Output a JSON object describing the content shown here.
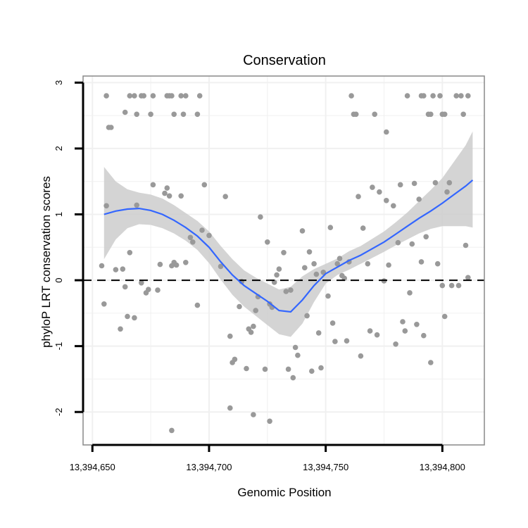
{
  "chart_data": {
    "type": "scatter",
    "title": "Conservation",
    "xlabel": "Genomic Position",
    "ylabel": "phyloP LRT conservation scores",
    "xlim": [
      13394646,
      13394818
    ],
    "ylim": [
      -2.5,
      3.1
    ],
    "x_ticks": [
      13394650,
      13394700,
      13394750,
      13394800
    ],
    "x_tick_labels": [
      "13,394,650",
      "13,394,700",
      "13,394,750",
      "13,394,800"
    ],
    "y_ticks": [
      -2,
      -1,
      0,
      1,
      2,
      3
    ],
    "y_tick_labels": [
      "-2",
      "-1",
      "0",
      "1",
      "2",
      "3"
    ],
    "reference_line": {
      "y": 0,
      "style": "dashed"
    },
    "grid": true,
    "colors": {
      "points": "#999999",
      "smooth_line": "#3366ff",
      "confidence_band": "#cccccc",
      "panel_background": "#ffffff",
      "grid": "#f0f0f0",
      "panel_border": "#888888"
    },
    "points": [
      [
        13394656,
        2.8
      ],
      [
        13394657,
        2.32
      ],
      [
        13394658,
        2.32
      ],
      [
        13394664,
        2.55
      ],
      [
        13394666,
        2.8
      ],
      [
        13394668,
        2.8
      ],
      [
        13394669,
        2.52
      ],
      [
        13394671,
        2.8
      ],
      [
        13394672,
        2.8
      ],
      [
        13394675,
        2.52
      ],
      [
        13394676,
        2.8
      ],
      [
        13394682,
        2.8
      ],
      [
        13394683,
        2.8
      ],
      [
        13394684,
        2.8
      ],
      [
        13394685,
        2.52
      ],
      [
        13394688,
        2.8
      ],
      [
        13394689,
        2.52
      ],
      [
        13394690,
        2.8
      ],
      [
        13394695,
        2.52
      ],
      [
        13394696,
        2.8
      ],
      [
        13394761,
        2.8
      ],
      [
        13394762,
        2.52
      ],
      [
        13394763,
        2.52
      ],
      [
        13394771,
        2.52
      ],
      [
        13394776,
        2.25
      ],
      [
        13394785,
        2.8
      ],
      [
        13394791,
        2.8
      ],
      [
        13394792,
        2.8
      ],
      [
        13394794,
        2.52
      ],
      [
        13394795,
        2.52
      ],
      [
        13394796,
        2.8
      ],
      [
        13394799,
        2.8
      ],
      [
        13394800,
        2.52
      ],
      [
        13394801,
        2.52
      ],
      [
        13394806,
        2.8
      ],
      [
        13394808,
        2.8
      ],
      [
        13394809,
        2.52
      ],
      [
        13394811,
        2.8
      ],
      [
        13394654,
        0.22
      ],
      [
        13394655,
        -0.36
      ],
      [
        13394656,
        1.13
      ],
      [
        13394660,
        0.16
      ],
      [
        13394662,
        -0.74
      ],
      [
        13394663,
        0.17
      ],
      [
        13394664,
        -0.1
      ],
      [
        13394665,
        -0.55
      ],
      [
        13394666,
        0.42
      ],
      [
        13394668,
        -0.57
      ],
      [
        13394669,
        1.14
      ],
      [
        13394671,
        -0.04
      ],
      [
        13394673,
        -0.19
      ],
      [
        13394674,
        -0.14
      ],
      [
        13394676,
        1.45
      ],
      [
        13394678,
        -0.15
      ],
      [
        13394679,
        0.24
      ],
      [
        13394681,
        1.32
      ],
      [
        13394682,
        1.4
      ],
      [
        13394683,
        1.28
      ],
      [
        13394684,
        0.22
      ],
      [
        13394685,
        0.27
      ],
      [
        13394686,
        0.23
      ],
      [
        13394688,
        1.28
      ],
      [
        13394690,
        0.27
      ],
      [
        13394692,
        0.65
      ],
      [
        13394693,
        0.58
      ],
      [
        13394695,
        -0.38
      ],
      [
        13394697,
        0.76
      ],
      [
        13394698,
        1.45
      ],
      [
        13394700,
        0.68
      ],
      [
        13394705,
        0.21
      ],
      [
        13394707,
        1.27
      ],
      [
        13394709,
        -0.85
      ],
      [
        13394710,
        -1.25
      ],
      [
        13394711,
        -1.2
      ],
      [
        13394713,
        -0.4
      ],
      [
        13394714,
        -0.02
      ],
      [
        13394716,
        -1.34
      ],
      [
        13394717,
        -0.74
      ],
      [
        13394718,
        -0.79
      ],
      [
        13394719,
        -0.7
      ],
      [
        13394720,
        -0.46
      ],
      [
        13394721,
        -0.25
      ],
      [
        13394722,
        0.96
      ],
      [
        13394724,
        -1.35
      ],
      [
        13394725,
        0.58
      ],
      [
        13394726,
        -0.36
      ],
      [
        13394727,
        -0.41
      ],
      [
        13394728,
        -0.03
      ],
      [
        13394729,
        0.08
      ],
      [
        13394730,
        0.17
      ],
      [
        13394732,
        0.42
      ],
      [
        13394733,
        -0.17
      ],
      [
        13394734,
        -1.35
      ],
      [
        13394735,
        -0.15
      ],
      [
        13394736,
        -1.48
      ],
      [
        13394737,
        -1.02
      ],
      [
        13394738,
        -1.14
      ],
      [
        13394740,
        0.75
      ],
      [
        13394741,
        0.19
      ],
      [
        13394742,
        -0.54
      ],
      [
        13394743,
        0.43
      ],
      [
        13394744,
        -1.38
      ],
      [
        13394745,
        0.25
      ],
      [
        13394746,
        0.09
      ],
      [
        13394747,
        -0.8
      ],
      [
        13394748,
        -1.33
      ],
      [
        13394749,
        0.12
      ],
      [
        13394751,
        -0.24
      ],
      [
        13394752,
        0.8
      ],
      [
        13394753,
        -0.65
      ],
      [
        13394754,
        -0.93
      ],
      [
        13394755,
        0.25
      ],
      [
        13394756,
        0.33
      ],
      [
        13394757,
        0.07
      ],
      [
        13394758,
        0.03
      ],
      [
        13394759,
        -0.92
      ],
      [
        13394760,
        0.28
      ],
      [
        13394764,
        1.27
      ],
      [
        13394765,
        -1.15
      ],
      [
        13394766,
        0.79
      ],
      [
        13394768,
        0.25
      ],
      [
        13394769,
        -0.77
      ],
      [
        13394770,
        1.41
      ],
      [
        13394772,
        -0.83
      ],
      [
        13394773,
        1.34
      ],
      [
        13394775,
        -0.01
      ],
      [
        13394776,
        1.21
      ],
      [
        13394777,
        0.23
      ],
      [
        13394779,
        1.13
      ],
      [
        13394780,
        -0.97
      ],
      [
        13394781,
        0.57
      ],
      [
        13394782,
        1.45
      ],
      [
        13394783,
        -0.63
      ],
      [
        13394784,
        -0.77
      ],
      [
        13394786,
        -0.19
      ],
      [
        13394787,
        0.55
      ],
      [
        13394788,
        1.47
      ],
      [
        13394789,
        -0.67
      ],
      [
        13394790,
        1.23
      ],
      [
        13394791,
        0.28
      ],
      [
        13394792,
        -0.84
      ],
      [
        13394793,
        0.66
      ],
      [
        13394795,
        -1.25
      ],
      [
        13394797,
        1.48
      ],
      [
        13394798,
        0.25
      ],
      [
        13394800,
        -0.08
      ],
      [
        13394801,
        -0.55
      ],
      [
        13394802,
        1.34
      ],
      [
        13394803,
        1.48
      ],
      [
        13394804,
        -0.08
      ],
      [
        13394807,
        -0.08
      ],
      [
        13394810,
        0.53
      ],
      [
        13394811,
        0.04
      ],
      [
        13394684,
        -2.28
      ],
      [
        13394709,
        -1.94
      ],
      [
        13394719,
        -2.04
      ],
      [
        13394726,
        -2.14
      ]
    ],
    "smooth": {
      "x": [
        13394655,
        13394660,
        13394665,
        13394670,
        13394675,
        13394680,
        13394685,
        13394690,
        13394695,
        13394700,
        13394705,
        13394710,
        13394715,
        13394720,
        13394725,
        13394730,
        13394735,
        13394740,
        13394745,
        13394750,
        13394755,
        13394760,
        13394765,
        13394770,
        13394775,
        13394780,
        13394785,
        13394790,
        13394795,
        13394800,
        13394805,
        13394810,
        13394813
      ],
      "y": [
        1.0,
        1.05,
        1.08,
        1.09,
        1.06,
        1.0,
        0.91,
        0.8,
        0.67,
        0.5,
        0.28,
        0.08,
        -0.08,
        -0.2,
        -0.32,
        -0.46,
        -0.48,
        -0.3,
        -0.08,
        0.1,
        0.2,
        0.3,
        0.38,
        0.48,
        0.58,
        0.7,
        0.82,
        0.94,
        1.05,
        1.17,
        1.3,
        1.43,
        1.52
      ],
      "lower": [
        0.32,
        0.62,
        0.79,
        0.85,
        0.84,
        0.79,
        0.71,
        0.6,
        0.46,
        0.26,
        0.01,
        -0.22,
        -0.4,
        -0.54,
        -0.68,
        -0.82,
        -0.86,
        -0.66,
        -0.33,
        -0.05,
        0.08,
        0.16,
        0.25,
        0.34,
        0.43,
        0.53,
        0.62,
        0.71,
        0.78,
        0.82,
        0.82,
        0.82,
        0.8
      ],
      "upper": [
        1.72,
        1.5,
        1.38,
        1.33,
        1.3,
        1.24,
        1.14,
        1.02,
        0.9,
        0.74,
        0.52,
        0.32,
        0.15,
        0.04,
        -0.05,
        -0.14,
        -0.1,
        0.06,
        0.17,
        0.25,
        0.33,
        0.44,
        0.52,
        0.63,
        0.74,
        0.88,
        1.03,
        1.2,
        1.37,
        1.55,
        1.8,
        2.05,
        2.26
      ]
    }
  }
}
